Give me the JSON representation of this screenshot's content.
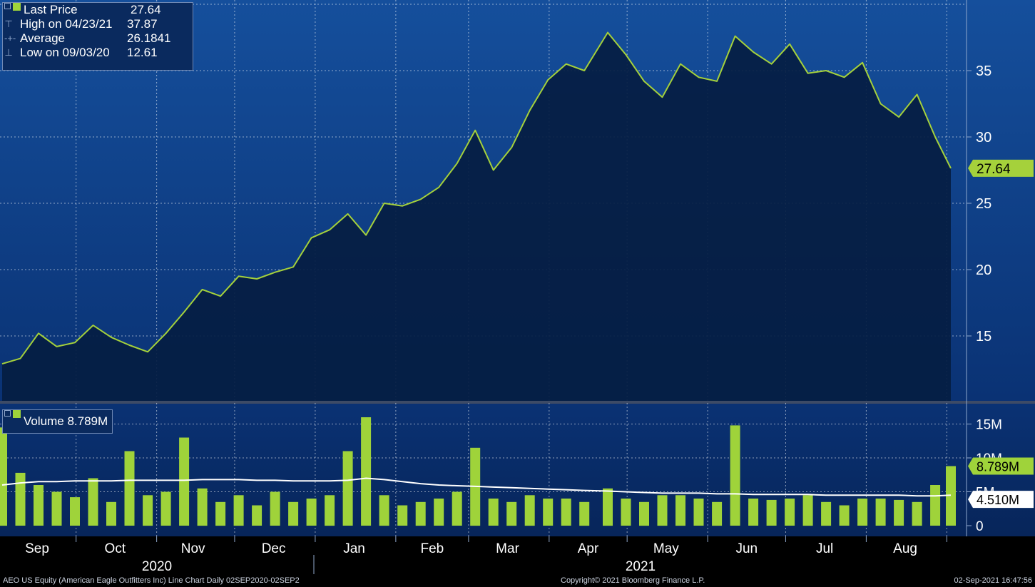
{
  "colors": {
    "price_line": "#a5d13b",
    "volume_bar": "#9fd33a",
    "average_line": "#ffffff",
    "bg_top": "#1a59a4",
    "bg_bottom": "#062152",
    "area_fill": "#051d42"
  },
  "price_legend": {
    "last_price_label": "Last Price",
    "last_price_value": "27.64",
    "high_label": "High on 04/23/21",
    "high_value": "37.87",
    "average_label": "Average",
    "average_value": "26.1841",
    "low_label": "Low on 09/03/20",
    "low_value": "12.61"
  },
  "volume_legend": {
    "label": "Volume",
    "value": "8.789M"
  },
  "price_axis": {
    "ticks": [
      "15",
      "20",
      "25",
      "30",
      "35"
    ],
    "last_tag": "27.64"
  },
  "volume_axis": {
    "ticks": [
      "0",
      "5M",
      "10M",
      "15M"
    ],
    "last_tag": "8.789M",
    "avg_tag": "4.510M"
  },
  "months": [
    "Sep",
    "Oct",
    "Nov",
    "Dec",
    "Jan",
    "Feb",
    "Mar",
    "Apr",
    "May",
    "Jun",
    "Jul",
    "Aug"
  ],
  "years": [
    "2020",
    "2021"
  ],
  "footer": {
    "left": "AEO US Equity (American Eagle Outfitters Inc) Line Chart  Daily 02SEP2020-02SEP2",
    "center": "Copyright© 2021 Bloomberg Finance L.P.",
    "right": "02-Sep-2021 16:47:56"
  },
  "chart_data": [
    {
      "type": "line",
      "series": [
        {
          "name": "Last Price",
          "x": [
            "2020-09-02",
            "2020-09-09",
            "2020-09-16",
            "2020-09-23",
            "2020-09-30",
            "2020-10-07",
            "2020-10-14",
            "2020-10-21",
            "2020-10-28",
            "2020-11-04",
            "2020-11-11",
            "2020-11-18",
            "2020-11-25",
            "2020-12-02",
            "2020-12-09",
            "2020-12-16",
            "2020-12-23",
            "2020-12-30",
            "2021-01-06",
            "2021-01-13",
            "2021-01-20",
            "2021-01-27",
            "2021-02-03",
            "2021-02-10",
            "2021-02-17",
            "2021-02-24",
            "2021-03-03",
            "2021-03-10",
            "2021-03-17",
            "2021-03-24",
            "2021-03-31",
            "2021-04-07",
            "2021-04-14",
            "2021-04-23",
            "2021-04-30",
            "2021-05-07",
            "2021-05-14",
            "2021-05-21",
            "2021-05-28",
            "2021-06-04",
            "2021-06-11",
            "2021-06-18",
            "2021-06-25",
            "2021-07-02",
            "2021-07-09",
            "2021-07-16",
            "2021-07-23",
            "2021-07-30",
            "2021-08-06",
            "2021-08-13",
            "2021-08-20",
            "2021-08-27",
            "2021-09-02"
          ],
          "values": [
            12.9,
            13.3,
            15.2,
            14.2,
            14.5,
            15.8,
            14.9,
            14.3,
            13.8,
            15.2,
            16.8,
            18.5,
            18.0,
            19.5,
            19.3,
            19.8,
            20.2,
            22.4,
            23.0,
            24.2,
            22.6,
            25.0,
            24.8,
            25.3,
            26.2,
            28.0,
            30.5,
            27.5,
            29.2,
            32.0,
            34.3,
            35.5,
            35.0,
            37.87,
            36.2,
            34.2,
            33.0,
            35.5,
            34.5,
            34.2,
            37.6,
            36.4,
            35.5,
            37.0,
            34.8,
            35.0,
            34.5,
            35.6,
            32.5,
            31.5,
            33.2,
            30.0,
            27.64
          ]
        }
      ],
      "y_ticks": [
        15,
        20,
        25,
        30,
        35
      ],
      "ylim": [
        10,
        40
      ]
    },
    {
      "type": "bar",
      "series": [
        {
          "name": "Volume",
          "x": [
            "2020-09-02",
            "2020-09-09",
            "2020-09-16",
            "2020-09-23",
            "2020-09-30",
            "2020-10-07",
            "2020-10-14",
            "2020-10-21",
            "2020-10-28",
            "2020-11-04",
            "2020-11-11",
            "2020-11-18",
            "2020-11-25",
            "2020-12-02",
            "2020-12-09",
            "2020-12-16",
            "2020-12-23",
            "2020-12-30",
            "2021-01-06",
            "2021-01-13",
            "2021-01-20",
            "2021-01-27",
            "2021-02-03",
            "2021-02-10",
            "2021-02-17",
            "2021-02-24",
            "2021-03-03",
            "2021-03-10",
            "2021-03-17",
            "2021-03-24",
            "2021-03-31",
            "2021-04-07",
            "2021-04-14",
            "2021-04-23",
            "2021-04-30",
            "2021-05-07",
            "2021-05-14",
            "2021-05-21",
            "2021-05-28",
            "2021-06-04",
            "2021-06-11",
            "2021-06-18",
            "2021-06-25",
            "2021-07-02",
            "2021-07-09",
            "2021-07-16",
            "2021-07-23",
            "2021-07-30",
            "2021-08-06",
            "2021-08-13",
            "2021-08-20",
            "2021-08-27",
            "2021-09-02"
          ],
          "values": [
            14.5,
            7.8,
            6.0,
            5.0,
            4.2,
            7.0,
            3.5,
            11.0,
            4.5,
            5.0,
            13.0,
            5.5,
            3.5,
            4.5,
            3.0,
            5.0,
            3.5,
            4.0,
            4.5,
            11.0,
            16.0,
            4.5,
            3.0,
            3.5,
            4.0,
            5.0,
            11.5,
            4.0,
            3.5,
            4.5,
            4.0,
            4.0,
            3.5,
            5.5,
            4.0,
            3.5,
            4.5,
            4.5,
            4.0,
            3.5,
            14.8,
            4.0,
            3.8,
            4.0,
            4.5,
            3.5,
            3.0,
            4.0,
            4.0,
            3.8,
            3.5,
            6.0,
            8.789
          ]
        },
        {
          "name": "Average",
          "values": [
            6.0,
            6.3,
            6.5,
            6.5,
            6.6,
            6.6,
            6.6,
            6.7,
            6.7,
            6.7,
            6.7,
            6.8,
            6.8,
            6.8,
            6.7,
            6.7,
            6.6,
            6.6,
            6.6,
            6.7,
            7.0,
            6.8,
            6.5,
            6.2,
            6.0,
            5.9,
            5.8,
            5.7,
            5.6,
            5.5,
            5.4,
            5.3,
            5.2,
            5.1,
            5.0,
            4.9,
            4.8,
            4.8,
            4.8,
            4.7,
            4.7,
            4.6,
            4.6,
            4.6,
            4.6,
            4.5,
            4.5,
            4.5,
            4.5,
            4.5,
            4.4,
            4.4,
            4.51
          ]
        }
      ],
      "y_ticks": [
        0,
        5,
        10,
        15
      ],
      "ylim": [
        0,
        17
      ]
    }
  ]
}
